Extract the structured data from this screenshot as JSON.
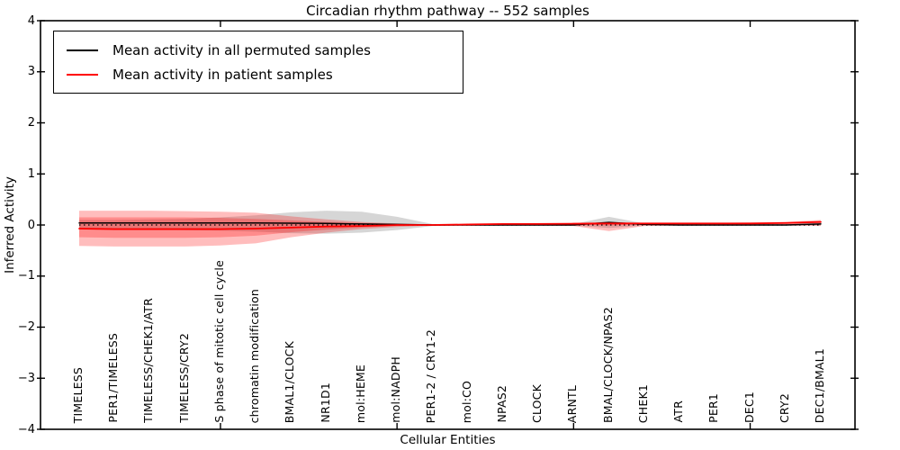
{
  "title": "Circadian rhythm pathway -- 552 samples",
  "legend": {
    "items": [
      {
        "label": "Mean activity in all permuted samples",
        "color": "#000000"
      },
      {
        "label": "Mean activity in patient samples",
        "color": "#ff0000"
      }
    ]
  },
  "axes": {
    "y_label": "Inferred Activity",
    "x_label": "Cellular Entities",
    "y_ticks": [
      "4",
      "3",
      "2",
      "1",
      "0",
      "−1",
      "−2",
      "−3",
      "−4"
    ]
  },
  "chart_data": {
    "type": "line",
    "title": "Circadian rhythm pathway -- 552 samples",
    "xlabel": "Cellular Entities",
    "ylabel": "Inferred Activity",
    "ylim": [
      -4,
      4
    ],
    "grid": false,
    "legend_position": "upper left",
    "zero_reference_line": 0,
    "categories": [
      "TIMELESS",
      "PER1/TIMELESS",
      "TIMELESS/CHEK1/ATR",
      "TIMELESS/CRY2",
      "S phase of mitotic cell cycle",
      "chromatin modification",
      "BMAL1/CLOCK",
      "NR1D1",
      "mol:HEME",
      "mol:NADPH",
      "PER1-2 / CRY1-2",
      "mol:CO",
      "NPAS2",
      "CLOCK",
      "ARNTL",
      "BMAL/CLOCK/NPAS2",
      "CHEK1",
      "ATR",
      "PER1",
      "DEC1",
      "CRY2",
      "DEC1/BMAL1"
    ],
    "axis_tick_category_indices": [
      4,
      9,
      14,
      19
    ],
    "series": [
      {
        "name": "Mean activity in all permuted samples",
        "kind": "line",
        "color": "#000000",
        "width": 1.5,
        "values": [
          0.04,
          0.04,
          0.04,
          0.04,
          0.04,
          0.04,
          0.035,
          0.03,
          0.02,
          0.01,
          0.0,
          0.0,
          0.0,
          0.0,
          0.0,
          0.05,
          0.01,
          0.0,
          0.0,
          0.0,
          0.0,
          0.02
        ]
      },
      {
        "name": "Mean activity in patient samples",
        "kind": "line",
        "color": "#ff0000",
        "width": 1.8,
        "values": [
          -0.07,
          -0.08,
          -0.08,
          -0.08,
          -0.08,
          -0.07,
          -0.05,
          -0.03,
          -0.02,
          0.0,
          0.0,
          0.01,
          0.02,
          0.02,
          0.025,
          0.03,
          0.03,
          0.03,
          0.03,
          0.03,
          0.04,
          0.06
        ]
      },
      {
        "name": "permuted samples spread",
        "kind": "band",
        "color": "#000000",
        "opacity": 0.16,
        "hi": [
          0.1,
          0.1,
          0.11,
          0.12,
          0.15,
          0.19,
          0.25,
          0.28,
          0.26,
          0.16,
          0.02,
          0.02,
          0.02,
          0.02,
          0.02,
          0.16,
          0.03,
          0.02,
          0.02,
          0.02,
          0.02,
          0.03
        ],
        "lo": [
          -0.09,
          -0.09,
          -0.09,
          -0.1,
          -0.11,
          -0.13,
          -0.16,
          -0.17,
          -0.15,
          -0.1,
          -0.02,
          -0.01,
          -0.01,
          -0.01,
          -0.01,
          -0.06,
          -0.01,
          -0.01,
          -0.01,
          -0.01,
          -0.01,
          -0.01
        ]
      },
      {
        "name": "patient samples outer spread",
        "kind": "band",
        "color": "#ff0000",
        "opacity": 0.26,
        "hi": [
          0.28,
          0.28,
          0.28,
          0.27,
          0.26,
          0.24,
          0.17,
          0.11,
          0.06,
          0.03,
          0.01,
          0.02,
          0.03,
          0.04,
          0.04,
          0.06,
          0.04,
          0.04,
          0.04,
          0.05,
          0.06,
          0.1
        ],
        "lo": [
          -0.41,
          -0.42,
          -0.42,
          -0.42,
          -0.4,
          -0.36,
          -0.24,
          -0.15,
          -0.08,
          -0.04,
          -0.01,
          -0.01,
          -0.01,
          -0.01,
          -0.02,
          -0.12,
          -0.02,
          -0.01,
          -0.01,
          -0.01,
          -0.01,
          -0.02
        ]
      },
      {
        "name": "patient samples inner spread",
        "kind": "band",
        "color": "#ff0000",
        "opacity": 0.26,
        "hi": [
          0.15,
          0.15,
          0.15,
          0.15,
          0.14,
          0.12,
          0.09,
          0.06,
          0.04,
          0.02,
          0.01,
          0.01,
          0.02,
          0.03,
          0.03,
          0.05,
          0.03,
          0.03,
          0.03,
          0.04,
          0.05,
          0.08
        ],
        "lo": [
          -0.24,
          -0.25,
          -0.25,
          -0.25,
          -0.24,
          -0.21,
          -0.14,
          -0.09,
          -0.05,
          -0.02,
          0.0,
          0.0,
          0.005,
          0.01,
          0.015,
          -0.01,
          0.02,
          0.02,
          0.02,
          0.025,
          0.03,
          0.04
        ]
      }
    ]
  }
}
